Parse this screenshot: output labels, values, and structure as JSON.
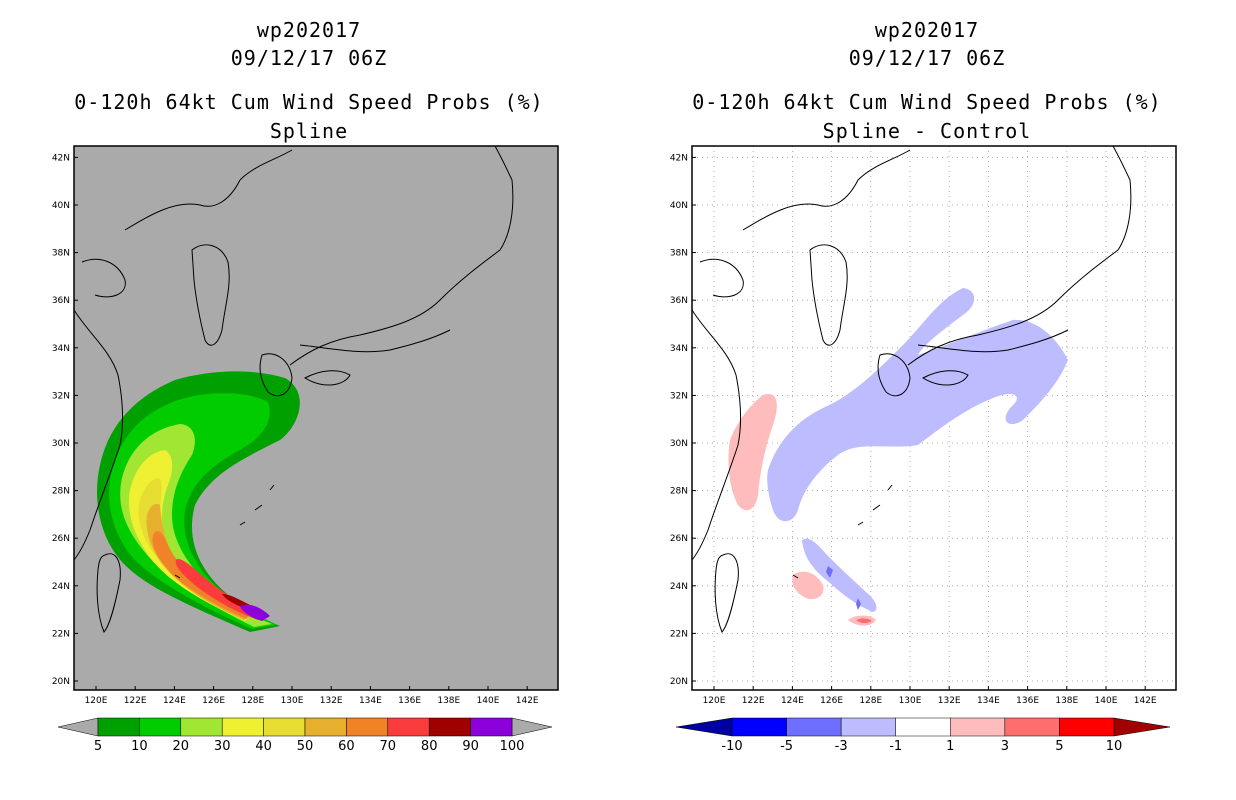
{
  "panels": [
    {
      "title_line1": "wp202017",
      "title_line2": "09/12/17 06Z",
      "title_line3": "0-120h 64kt Cum Wind Speed Probs (%)",
      "title_line4": "Spline",
      "background": "#aaaaaa",
      "colorbar": {
        "labels": [
          "5",
          "10",
          "20",
          "30",
          "40",
          "50",
          "60",
          "70",
          "80",
          "90",
          "100"
        ],
        "colors": [
          "#00a000",
          "#00cc00",
          "#a0e632",
          "#f0f032",
          "#e6dc32",
          "#e6af2d",
          "#f08228",
          "#fa3c3c",
          "#a00000",
          "#8c00dc"
        ]
      }
    },
    {
      "title_line1": "wp202017",
      "title_line2": "09/12/17 06Z",
      "title_line3": "0-120h 64kt Cum Wind Speed Probs (%)",
      "title_line4": "Spline - Control",
      "background": "#ffffff",
      "colorbar": {
        "labels": [
          "-10",
          "-5",
          "-3",
          "-1",
          "1",
          "3",
          "5",
          "10"
        ],
        "colors": [
          "#0000a0",
          "#0000ff",
          "#6e6eff",
          "#bcbcff",
          "#ffffff",
          "#ffbcbc",
          "#ff6e6e",
          "#ff0000",
          "#a00000"
        ]
      }
    }
  ],
  "axes": {
    "lon_labels": [
      "120E",
      "122E",
      "124E",
      "126E",
      "128E",
      "130E",
      "132E",
      "134E",
      "136E",
      "138E",
      "140E",
      "142E"
    ],
    "lat_labels": [
      "20N",
      "22N",
      "24N",
      "26N",
      "28N",
      "30N",
      "32N",
      "34N",
      "36N",
      "38N",
      "40N",
      "42N"
    ]
  },
  "icons": {
    "colorbar_left_arrow": "triangle-left",
    "colorbar_right_arrow": "triangle-right"
  }
}
